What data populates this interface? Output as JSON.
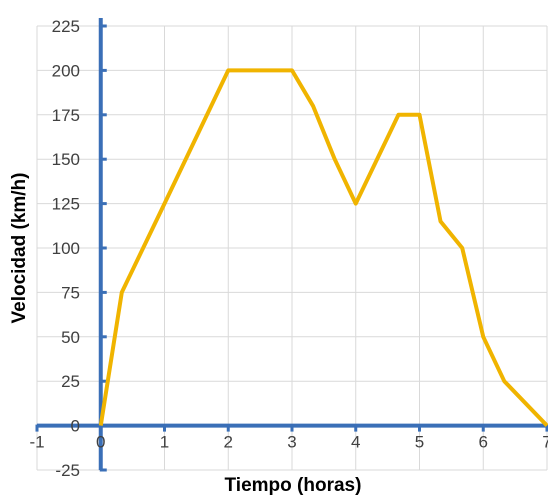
{
  "chart_data": {
    "type": "line",
    "title": "",
    "xlabel": "Tiempo (horas)",
    "ylabel": "Velocidad (km/h)",
    "xlim": [
      -1,
      7
    ],
    "ylim": [
      -25,
      225
    ],
    "x_ticks": [
      -1,
      0,
      1,
      2,
      3,
      4,
      5,
      6,
      7
    ],
    "y_ticks": [
      -25,
      0,
      25,
      50,
      75,
      100,
      125,
      150,
      175,
      200,
      225
    ],
    "grid": true,
    "legend": "none",
    "series": [
      {
        "x": [
          0,
          0.33,
          1,
          2,
          3,
          3.33,
          3.67,
          4,
          4.67,
          5,
          5.33,
          5.67,
          6,
          6.33,
          7
        ],
        "y": [
          0,
          75,
          125,
          200,
          200,
          180,
          150,
          125,
          175,
          175,
          115,
          100,
          50,
          25,
          0
        ],
        "color": "#f0b400"
      }
    ],
    "axis_color": "#3a6fb7",
    "grid_color": "#d9d9d9"
  }
}
